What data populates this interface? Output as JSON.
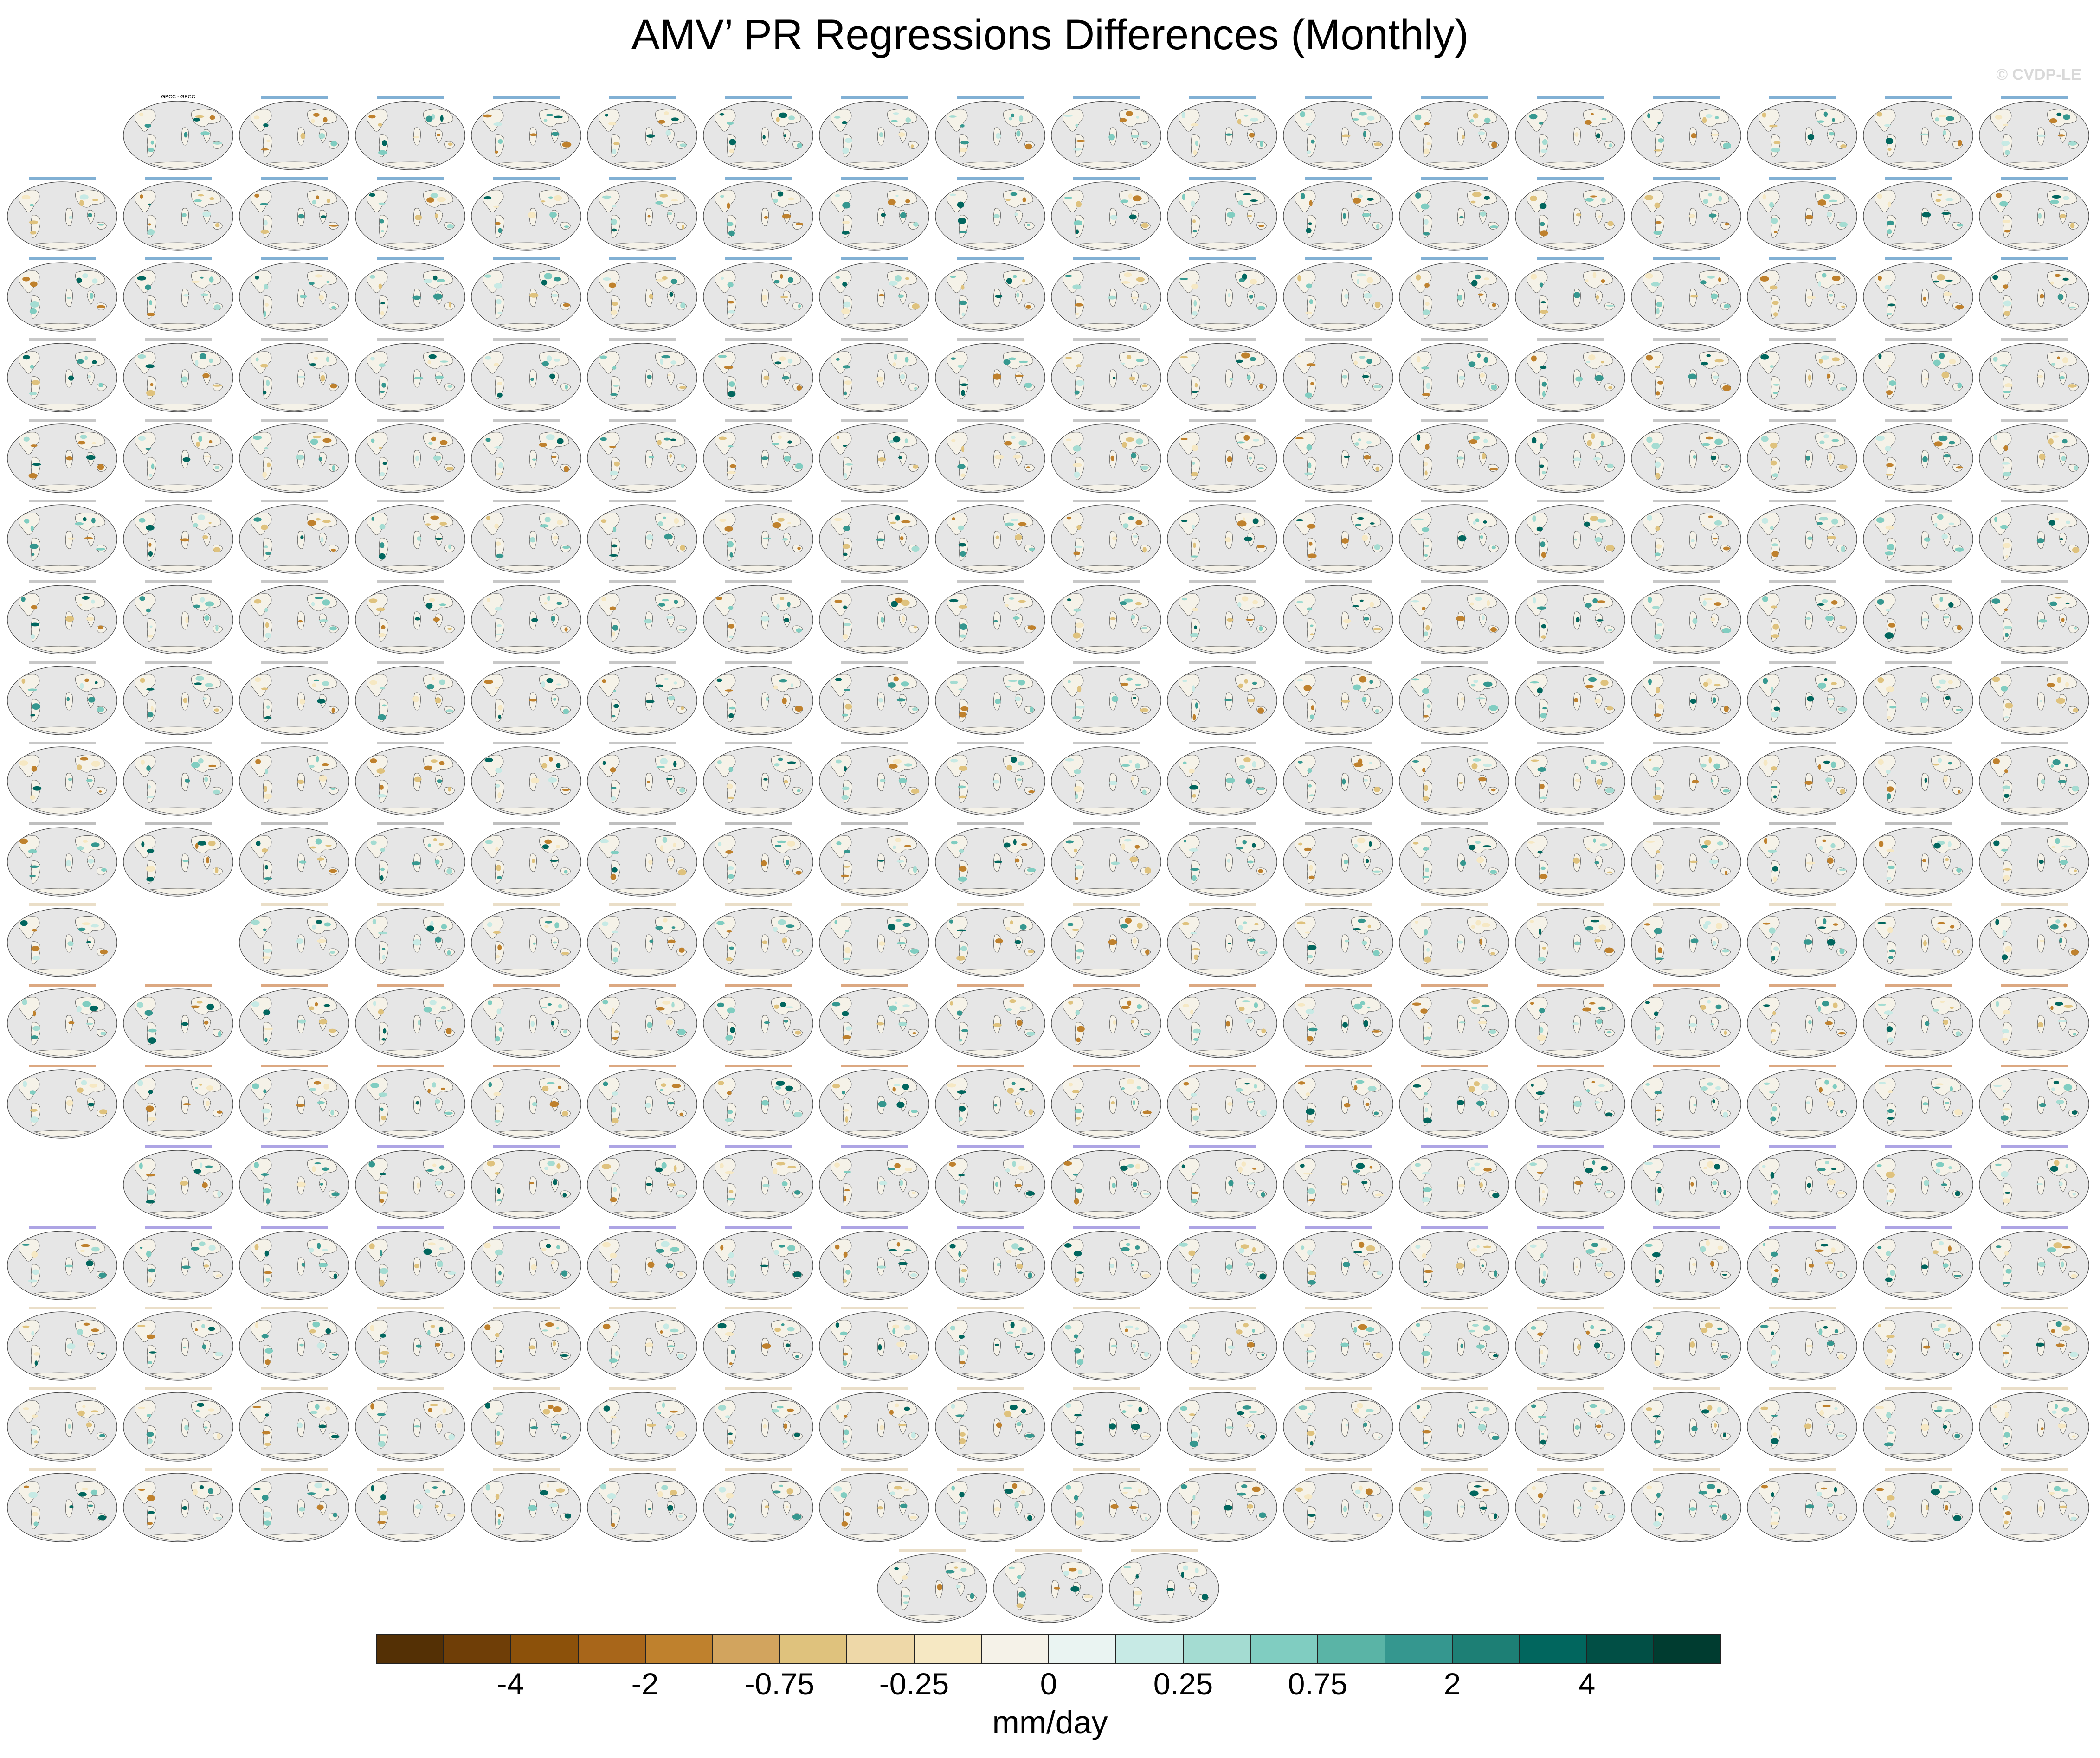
{
  "title": "AMV’ PR Regressions Differences (Monthly)",
  "watermark": "© CVDP-LE",
  "units": "mm/day",
  "colorbar": {
    "colors": [
      "#543005",
      "#6f3e07",
      "#8c510a",
      "#a8661a",
      "#bf812d",
      "#d2a45e",
      "#dfc27d",
      "#eed8a8",
      "#f6e8c3",
      "#f5f2e8",
      "#eaf4f2",
      "#c7eae5",
      "#a4dcd2",
      "#80cdc1",
      "#5ab4a6",
      "#35978f",
      "#1d7f75",
      "#01665e",
      "#014f45",
      "#003c30"
    ],
    "labels": [
      {
        "text": "-4",
        "boundary": 2
      },
      {
        "text": "-2",
        "boundary": 4
      },
      {
        "text": "-0.75",
        "boundary": 6
      },
      {
        "text": "-0.25",
        "boundary": 8
      },
      {
        "text": "0",
        "boundary": 10
      },
      {
        "text": "0.25",
        "boundary": 12
      },
      {
        "text": "0.75",
        "boundary": 14
      },
      {
        "text": "2",
        "boundary": 16
      },
      {
        "text": "4",
        "boundary": 18
      }
    ]
  },
  "panels": {
    "grid_columns": 18,
    "rows": [
      {
        "start": 1,
        "count": 17
      },
      {
        "start": 0,
        "count": 18
      },
      {
        "start": 0,
        "count": 18
      },
      {
        "start": 0,
        "count": 18
      },
      {
        "start": 0,
        "count": 18
      },
      {
        "start": 0,
        "count": 18
      },
      {
        "start": 0,
        "count": 18
      },
      {
        "start": 0,
        "count": 18
      },
      {
        "start": 0,
        "count": 18
      },
      {
        "start": 0,
        "count": 18
      },
      {
        "start": 0,
        "count": 1,
        "then_start": 2,
        "then_count": 16
      },
      {
        "start": 0,
        "count": 18
      },
      {
        "start": 0,
        "count": 18
      },
      {
        "start": 1,
        "count": 17
      },
      {
        "start": 0,
        "count": 18
      },
      {
        "start": 0,
        "count": 18
      },
      {
        "start": 0,
        "count": 18
      },
      {
        "start": 0,
        "count": 18
      },
      {
        "start": 7.5,
        "count": 3
      }
    ],
    "title_colors": {
      "obs": "#000000",
      "canesm": "#1a6fb0",
      "cesm": "#9a9a9a",
      "cnrm": "#8a8a8a",
      "giss": "#c0601a",
      "ipsl": "#6a5acd",
      "miroc": "#d8c39a"
    },
    "first_title": "GPCC - GPCC",
    "title_groups": [
      {
        "from_row": 0,
        "to_row": 3,
        "group": "canesm"
      },
      {
        "from_row": 3,
        "to_row": 9,
        "group": "cesm"
      },
      {
        "from_row": 9,
        "to_row": 10,
        "group": "cnrm"
      },
      {
        "from_row": 11,
        "to_row": 13,
        "group": "giss"
      },
      {
        "from_row": 13,
        "to_row": 15,
        "group": "ipsl"
      },
      {
        "from_row": 15,
        "to_row": 18,
        "group": "miroc"
      }
    ]
  }
}
